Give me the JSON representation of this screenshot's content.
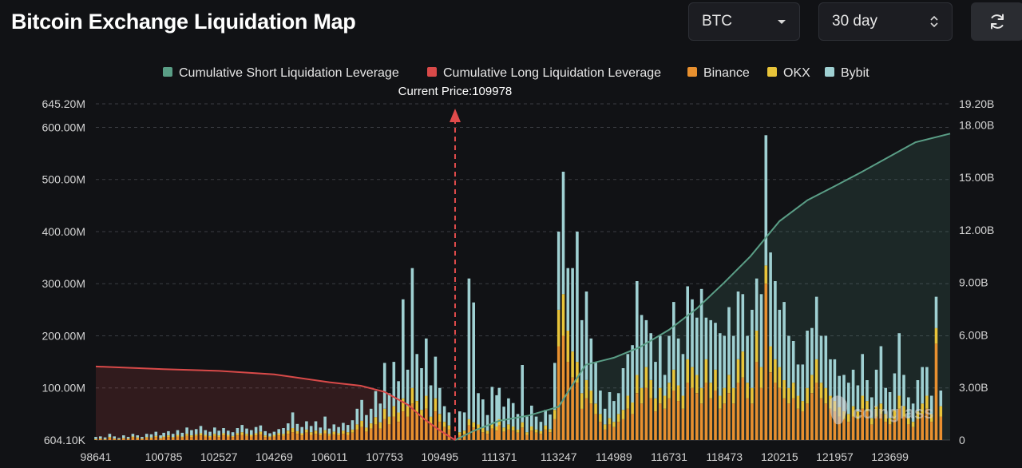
{
  "header": {
    "title": "Bitcoin Exchange Liquidation Map",
    "asset_select": {
      "value": "BTC"
    },
    "range_select": {
      "value": "30 day"
    },
    "refresh_icon": "refresh-icon"
  },
  "watermark": {
    "text": "coinglass",
    "icon": "coinglass-logo-icon"
  },
  "chart_data": {
    "type": "bar",
    "title": "",
    "legend_position": "top-center",
    "legend": [
      {
        "name": "Cumulative Short Liquidation Leverage",
        "color": "#5a9e86",
        "kind": "line"
      },
      {
        "name": "Cumulative Long Liquidation Leverage",
        "color": "#d94a49",
        "kind": "line"
      },
      {
        "name": "Binance",
        "color": "#e8902f",
        "kind": "bar"
      },
      {
        "name": "OKX",
        "color": "#e8c43a",
        "kind": "bar"
      },
      {
        "name": "Bybit",
        "color": "#9fd0d2",
        "kind": "bar"
      }
    ],
    "annotation": {
      "label": "Current Price:109978",
      "price": 109978,
      "color": "#e04b4b"
    },
    "x_ticks": [
      "98641",
      "100785",
      "102527",
      "104269",
      "106011",
      "107753",
      "109495",
      "111371",
      "113247",
      "114989",
      "116731",
      "118473",
      "120215",
      "121957",
      "123699"
    ],
    "x_range": [
      98641,
      125599
    ],
    "y_left": {
      "tick_labels": [
        "604.10K",
        "100.00M",
        "200.00M",
        "300.00M",
        "400.00M",
        "500.00M",
        "600.00M",
        "645.20M"
      ],
      "min": 0,
      "max": 645200000
    },
    "y_right": {
      "tick_labels": [
        "0",
        "3.00B",
        "6.00B",
        "9.00B",
        "12.00B",
        "15.00B",
        "18.00B",
        "19.20B"
      ],
      "min": 0,
      "max": 19200000000
    },
    "grid": true,
    "bar_unit": "M",
    "series_long_cumulative_B": [
      [
        98641,
        4.2
      ],
      [
        100785,
        4.05
      ],
      [
        102527,
        3.95
      ],
      [
        104269,
        3.75
      ],
      [
        106011,
        3.3
      ],
      [
        107000,
        3.1
      ],
      [
        107753,
        2.75
      ],
      [
        108500,
        2.0
      ],
      [
        109000,
        1.2
      ],
      [
        109495,
        0.55
      ],
      [
        109978,
        0.0
      ]
    ],
    "series_short_cumulative_B": [
      [
        109978,
        0.0
      ],
      [
        110600,
        0.55
      ],
      [
        111371,
        1.1
      ],
      [
        112300,
        1.4
      ],
      [
        113247,
        1.9
      ],
      [
        113700,
        3.2
      ],
      [
        114100,
        4.3
      ],
      [
        114989,
        4.7
      ],
      [
        115800,
        5.3
      ],
      [
        116731,
        6.3
      ],
      [
        117600,
        7.5
      ],
      [
        118473,
        9.0
      ],
      [
        119300,
        10.5
      ],
      [
        120215,
        12.5
      ],
      [
        121100,
        13.7
      ],
      [
        121957,
        14.5
      ],
      [
        122800,
        15.3
      ],
      [
        123699,
        16.2
      ],
      [
        124500,
        17.0
      ],
      [
        125599,
        17.5
      ]
    ],
    "bars": [
      [
        98641,
        1,
        1,
        4
      ],
      [
        98787,
        2,
        1,
        4
      ],
      [
        98933,
        1,
        1,
        3
      ],
      [
        99079,
        4,
        2,
        6
      ],
      [
        99225,
        2,
        1,
        4
      ],
      [
        99371,
        1,
        1,
        2
      ],
      [
        99517,
        3,
        1,
        5
      ],
      [
        99663,
        2,
        1,
        3
      ],
      [
        99809,
        5,
        2,
        5
      ],
      [
        99955,
        3,
        2,
        4
      ],
      [
        100101,
        2,
        1,
        3
      ],
      [
        100247,
        4,
        2,
        6
      ],
      [
        100393,
        3,
        2,
        6
      ],
      [
        100539,
        6,
        2,
        8
      ],
      [
        100685,
        3,
        1,
        5
      ],
      [
        100785,
        5,
        2,
        7
      ],
      [
        100931,
        6,
        3,
        8
      ],
      [
        101077,
        4,
        2,
        6
      ],
      [
        101223,
        7,
        3,
        9
      ],
      [
        101369,
        5,
        2,
        7
      ],
      [
        101515,
        8,
        4,
        12
      ],
      [
        101661,
        6,
        3,
        10
      ],
      [
        101807,
        8,
        3,
        10
      ],
      [
        101953,
        9,
        4,
        14
      ],
      [
        102099,
        7,
        3,
        9
      ],
      [
        102245,
        5,
        3,
        8
      ],
      [
        102391,
        8,
        4,
        12
      ],
      [
        102527,
        6,
        3,
        9
      ],
      [
        102673,
        9,
        4,
        10
      ],
      [
        102819,
        7,
        3,
        8
      ],
      [
        102965,
        6,
        2,
        7
      ],
      [
        103111,
        9,
        4,
        10
      ],
      [
        103257,
        10,
        5,
        14
      ],
      [
        103403,
        8,
        4,
        10
      ],
      [
        103549,
        7,
        3,
        9
      ],
      [
        103695,
        9,
        4,
        12
      ],
      [
        103841,
        11,
        5,
        12
      ],
      [
        103987,
        6,
        3,
        8
      ],
      [
        104133,
        5,
        2,
        6
      ],
      [
        104269,
        7,
        3,
        6
      ],
      [
        104415,
        9,
        4,
        8
      ],
      [
        104561,
        8,
        4,
        11
      ],
      [
        104707,
        12,
        6,
        14
      ],
      [
        104853,
        15,
        8,
        30
      ],
      [
        104999,
        12,
        5,
        14
      ],
      [
        105145,
        9,
        4,
        12
      ],
      [
        105291,
        14,
        6,
        16
      ],
      [
        105437,
        10,
        5,
        12
      ],
      [
        105583,
        12,
        6,
        18
      ],
      [
        105729,
        9,
        4,
        11
      ],
      [
        105875,
        13,
        6,
        26
      ],
      [
        106011,
        8,
        4,
        10
      ],
      [
        106157,
        11,
        5,
        14
      ],
      [
        106303,
        9,
        4,
        12
      ],
      [
        106449,
        12,
        6,
        15
      ],
      [
        106595,
        10,
        5,
        14
      ],
      [
        106741,
        14,
        6,
        18
      ],
      [
        106887,
        20,
        10,
        30
      ],
      [
        107033,
        25,
        12,
        40
      ],
      [
        107179,
        16,
        8,
        24
      ],
      [
        107325,
        22,
        10,
        28
      ],
      [
        107471,
        30,
        14,
        50
      ],
      [
        107617,
        22,
        12,
        36
      ],
      [
        107753,
        40,
        20,
        88
      ],
      [
        107899,
        30,
        15,
        45
      ],
      [
        108045,
        45,
        20,
        85
      ],
      [
        108191,
        35,
        18,
        60
      ],
      [
        108337,
        55,
        25,
        190
      ],
      [
        108483,
        45,
        20,
        70
      ],
      [
        108629,
        70,
        30,
        230
      ],
      [
        108775,
        50,
        25,
        90
      ],
      [
        108921,
        40,
        18,
        80
      ],
      [
        109067,
        60,
        25,
        110
      ],
      [
        109213,
        30,
        15,
        60
      ],
      [
        109359,
        55,
        25,
        80
      ],
      [
        109495,
        35,
        15,
        50
      ],
      [
        109641,
        25,
        10,
        30
      ],
      [
        109787,
        20,
        8,
        25
      ],
      [
        110124,
        10,
        5,
        40
      ],
      [
        110270,
        12,
        6,
        35
      ],
      [
        110416,
        28,
        12,
        270
      ],
      [
        110562,
        24,
        10,
        230
      ],
      [
        110708,
        20,
        10,
        60
      ],
      [
        110854,
        15,
        8,
        55
      ],
      [
        111000,
        12,
        6,
        30
      ],
      [
        111146,
        22,
        10,
        70
      ],
      [
        111292,
        18,
        8,
        60
      ],
      [
        111371,
        28,
        12,
        60
      ],
      [
        111517,
        16,
        8,
        40
      ],
      [
        111663,
        20,
        10,
        50
      ],
      [
        111809,
        18,
        8,
        45
      ],
      [
        111955,
        14,
        6,
        30
      ],
      [
        112101,
        24,
        10,
        110
      ],
      [
        112247,
        10,
        5,
        30
      ],
      [
        112393,
        18,
        8,
        40
      ],
      [
        112539,
        14,
        6,
        25
      ],
      [
        112685,
        12,
        5,
        18
      ],
      [
        112831,
        20,
        8,
        30
      ],
      [
        112977,
        15,
        6,
        28
      ],
      [
        113123,
        40,
        18,
        90
      ],
      [
        113247,
        180,
        70,
        150
      ],
      [
        113393,
        200,
        80,
        235
      ],
      [
        113539,
        150,
        60,
        120
      ],
      [
        113685,
        120,
        50,
        160
      ],
      [
        113831,
        110,
        40,
        250
      ],
      [
        113977,
        60,
        30,
        140
      ],
      [
        114123,
        80,
        35,
        170
      ],
      [
        114269,
        70,
        25,
        100
      ],
      [
        114415,
        50,
        20,
        80
      ],
      [
        114561,
        35,
        15,
        45
      ],
      [
        114707,
        20,
        10,
        30
      ],
      [
        114853,
        30,
        12,
        50
      ],
      [
        114989,
        25,
        10,
        40
      ],
      [
        115135,
        35,
        15,
        40
      ],
      [
        115281,
        40,
        18,
        80
      ],
      [
        115427,
        60,
        25,
        80
      ],
      [
        115573,
        50,
        22,
        110
      ],
      [
        115719,
        90,
        35,
        180
      ],
      [
        115865,
        70,
        30,
        140
      ],
      [
        116011,
        100,
        40,
        90
      ],
      [
        116157,
        80,
        35,
        90
      ],
      [
        116303,
        55,
        25,
        70
      ],
      [
        116449,
        70,
        30,
        100
      ],
      [
        116595,
        60,
        25,
        40
      ],
      [
        116731,
        80,
        30,
        90
      ],
      [
        116877,
        95,
        40,
        130
      ],
      [
        117023,
        75,
        30,
        90
      ],
      [
        117169,
        60,
        25,
        80
      ],
      [
        117315,
        110,
        45,
        140
      ],
      [
        117461,
        100,
        40,
        130
      ],
      [
        117607,
        90,
        35,
        110
      ],
      [
        117753,
        70,
        30,
        190
      ],
      [
        117899,
        110,
        45,
        80
      ],
      [
        118045,
        80,
        30,
        120
      ],
      [
        118191,
        95,
        40,
        90
      ],
      [
        118337,
        60,
        25,
        120
      ],
      [
        118473,
        70,
        30,
        100
      ],
      [
        118619,
        90,
        35,
        130
      ],
      [
        118765,
        70,
        30,
        100
      ],
      [
        118911,
        110,
        45,
        130
      ],
      [
        119057,
        120,
        50,
        110
      ],
      [
        119203,
        80,
        30,
        90
      ],
      [
        119349,
        70,
        30,
        150
      ],
      [
        119495,
        150,
        60,
        100
      ],
      [
        119641,
        100,
        40,
        140
      ],
      [
        119787,
        300,
        35,
        250
      ],
      [
        119933,
        130,
        50,
        180
      ],
      [
        120079,
        110,
        45,
        150
      ],
      [
        120215,
        100,
        40,
        110
      ],
      [
        120361,
        80,
        35,
        150
      ],
      [
        120507,
        70,
        30,
        100
      ],
      [
        120653,
        80,
        30,
        80
      ],
      [
        120799,
        60,
        25,
        60
      ],
      [
        120945,
        55,
        20,
        70
      ],
      [
        121091,
        70,
        30,
        110
      ],
      [
        121237,
        90,
        35,
        90
      ],
      [
        121383,
        110,
        45,
        120
      ],
      [
        121529,
        80,
        30,
        90
      ],
      [
        121675,
        70,
        30,
        100
      ],
      [
        121821,
        60,
        25,
        70
      ],
      [
        121957,
        55,
        20,
        80
      ],
      [
        122103,
        45,
        18,
        60
      ],
      [
        122249,
        40,
        15,
        70
      ],
      [
        122395,
        35,
        15,
        60
      ],
      [
        122541,
        45,
        20,
        70
      ],
      [
        122687,
        40,
        15,
        50
      ],
      [
        122833,
        60,
        25,
        80
      ],
      [
        122979,
        55,
        20,
        40
      ],
      [
        123125,
        30,
        12,
        40
      ],
      [
        123271,
        45,
        20,
        70
      ],
      [
        123417,
        50,
        20,
        110
      ],
      [
        123563,
        35,
        15,
        50
      ],
      [
        123699,
        30,
        12,
        50
      ],
      [
        123845,
        40,
        18,
        70
      ],
      [
        123991,
        60,
        25,
        120
      ],
      [
        124137,
        45,
        20,
        60
      ],
      [
        124283,
        30,
        12,
        40
      ],
      [
        124429,
        25,
        10,
        35
      ],
      [
        124575,
        40,
        15,
        60
      ],
      [
        124721,
        50,
        20,
        70
      ],
      [
        124867,
        60,
        25,
        55
      ],
      [
        125013,
        35,
        15,
        35
      ],
      [
        125159,
        185,
        30,
        60
      ],
      [
        125305,
        45,
        20,
        30
      ]
    ]
  }
}
